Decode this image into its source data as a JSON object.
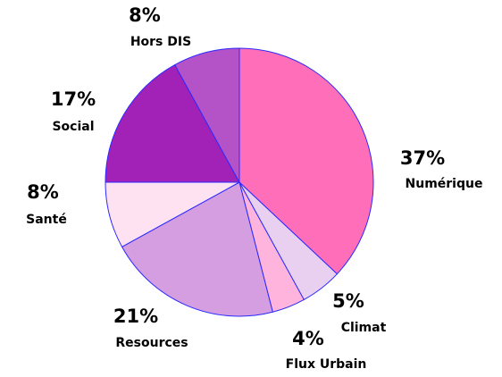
{
  "chart_data": {
    "type": "pie",
    "categories": [
      "Numérique",
      "Climat",
      "Flux Urbain",
      "Resources",
      "Santé",
      "Social",
      "Hors DIS"
    ],
    "values": [
      37,
      5,
      4,
      21,
      8,
      17,
      8
    ],
    "value_labels": [
      "37%",
      "5%",
      "4%",
      "21%",
      "8%",
      "17%",
      "8%"
    ],
    "colors": [
      "#ff6eb8",
      "#ead0f0",
      "#ffb4de",
      "#d49ee0",
      "#ffe2f1",
      "#a222b8",
      "#b452c8"
    ]
  }
}
